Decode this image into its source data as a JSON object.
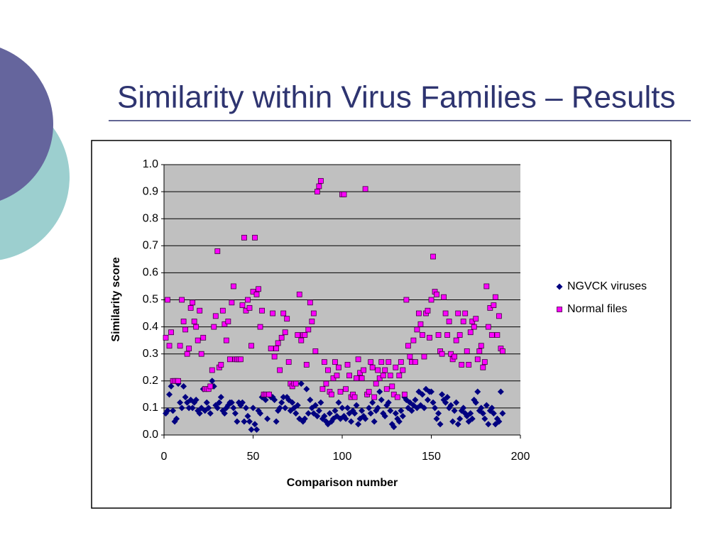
{
  "title": "Similarity within Virus Families – Results",
  "chart_data": {
    "type": "scatter",
    "xlabel": "Comparison number",
    "ylabel": "Similarity score",
    "xlim": [
      0,
      200
    ],
    "xticks": [
      0,
      50,
      100,
      150,
      200
    ],
    "ylim": [
      0,
      1
    ],
    "yticks": [
      {
        "value": 0,
        "label": "0.0"
      },
      0.1,
      0.2,
      0.3,
      0.4,
      0.5,
      0.6,
      0.7,
      0.8,
      0.9,
      {
        "value": 1,
        "label": "1.0"
      }
    ],
    "grid": true,
    "legend": "right",
    "x": [
      1,
      2,
      3,
      4,
      5,
      6,
      7,
      8,
      9,
      10,
      11,
      12,
      13,
      14,
      15,
      16,
      17,
      18,
      19,
      20,
      21,
      22,
      23,
      24,
      25,
      26,
      27,
      28,
      29,
      30,
      31,
      32,
      33,
      34,
      35,
      36,
      37,
      38,
      39,
      40,
      41,
      42,
      43,
      44,
      45,
      46,
      47,
      48,
      49,
      50,
      51,
      52,
      53,
      54,
      55,
      56,
      57,
      58,
      59,
      60,
      61,
      62,
      63,
      64,
      65,
      66,
      67,
      68,
      69,
      70,
      71,
      72,
      73,
      74,
      75,
      76,
      77,
      78,
      79,
      80,
      81,
      82,
      83,
      84,
      85,
      86,
      87,
      88,
      89,
      90,
      91,
      92,
      93,
      94,
      95,
      96,
      97,
      98,
      99,
      100,
      101,
      102,
      103,
      104,
      105,
      106,
      107,
      108,
      109,
      110,
      111,
      112,
      113,
      114,
      115,
      116,
      117,
      118,
      119,
      120,
      121,
      122,
      123,
      124,
      125,
      126,
      127,
      128,
      129,
      130,
      131,
      132,
      133,
      134,
      135,
      136,
      137,
      138,
      139,
      140,
      141,
      142,
      143,
      144,
      145,
      146,
      147,
      148,
      149,
      150,
      151,
      152,
      153,
      154,
      155,
      156,
      157,
      158,
      159,
      160,
      161,
      162,
      163,
      164,
      165,
      166,
      167,
      168,
      169,
      170,
      171,
      172,
      173,
      174,
      175,
      176,
      177,
      178,
      179,
      180,
      181,
      182,
      183,
      184,
      185,
      186,
      187,
      188,
      189,
      190
    ],
    "series": [
      {
        "name": "NGVCK viruses",
        "color": "#000080",
        "marker": "diamond",
        "values": [
          0.08,
          0.09,
          0.15,
          0.18,
          0.09,
          0.05,
          0.06,
          0.19,
          0.12,
          0.1,
          0.18,
          0.14,
          0.12,
          0.1,
          0.13,
          0.1,
          0.12,
          0.13,
          0.09,
          0.08,
          0.1,
          0.17,
          0.09,
          0.12,
          0.1,
          0.08,
          0.2,
          0.18,
          0.11,
          0.1,
          0.12,
          0.14,
          0.09,
          0.08,
          0.1,
          0.11,
          0.12,
          0.12,
          0.1,
          0.08,
          0.05,
          0.12,
          0.11,
          0.12,
          0.05,
          0.1,
          0.07,
          0.05,
          0.02,
          0.1,
          0.04,
          0.02,
          0.09,
          0.08,
          0.14,
          0.15,
          0.13,
          0.06,
          0.15,
          0.14,
          0.14,
          0.13,
          0.05,
          0.09,
          0.1,
          0.12,
          0.14,
          0.1,
          0.14,
          0.13,
          0.09,
          0.12,
          0.1,
          0.08,
          0.11,
          0.06,
          0.19,
          0.05,
          0.06,
          0.17,
          0.08,
          0.13,
          0.1,
          0.08,
          0.11,
          0.07,
          0.09,
          0.12,
          0.06,
          0.07,
          0.05,
          0.04,
          0.08,
          0.05,
          0.06,
          0.09,
          0.07,
          0.12,
          0.06,
          0.1,
          0.07,
          0.06,
          0.1,
          0.08,
          0.05,
          0.09,
          0.08,
          0.11,
          0.04,
          0.06,
          0.09,
          0.07,
          0.06,
          0.15,
          0.1,
          0.08,
          0.12,
          0.05,
          0.09,
          0.1,
          0.16,
          0.13,
          0.08,
          0.07,
          0.11,
          0.12,
          0.09,
          0.04,
          0.03,
          0.08,
          0.06,
          0.05,
          0.09,
          0.07,
          0.14,
          0.13,
          0.1,
          0.12,
          0.09,
          0.11,
          0.13,
          0.1,
          0.16,
          0.11,
          0.15,
          0.1,
          0.17,
          0.13,
          0.16,
          0.16,
          0.12,
          0.1,
          0.06,
          0.08,
          0.04,
          0.15,
          0.13,
          0.12,
          0.14,
          0.1,
          0.11,
          0.05,
          0.09,
          0.12,
          0.04,
          0.06,
          0.09,
          0.1,
          0.08,
          0.07,
          0.05,
          0.08,
          0.06,
          0.13,
          0.12,
          0.16,
          0.09,
          0.1,
          0.08,
          0.06,
          0.11,
          0.04,
          0.09,
          0.1,
          0.08,
          0.04,
          0.06,
          0.05,
          0.16,
          0.08
        ]
      },
      {
        "name": "Normal files",
        "color": "#ff00ff",
        "marker": "square",
        "values": [
          0.36,
          0.5,
          0.33,
          0.38,
          0.2,
          0.2,
          0.2,
          0.2,
          0.33,
          0.5,
          0.42,
          0.39,
          0.3,
          0.32,
          0.47,
          0.49,
          0.42,
          0.4,
          0.35,
          0.46,
          0.3,
          0.36,
          0.17,
          0.17,
          0.17,
          0.18,
          0.24,
          0.4,
          0.44,
          0.68,
          0.25,
          0.26,
          0.46,
          0.41,
          0.35,
          0.42,
          0.28,
          0.49,
          0.55,
          0.28,
          0.28,
          0.28,
          0.28,
          0.48,
          0.73,
          0.46,
          0.5,
          0.47,
          0.33,
          0.53,
          0.73,
          0.52,
          0.54,
          0.4,
          0.46,
          0.15,
          0.15,
          0.15,
          0.15,
          0.32,
          0.45,
          0.29,
          0.32,
          0.34,
          0.24,
          0.36,
          0.45,
          0.38,
          0.43,
          0.27,
          0.19,
          0.18,
          0.19,
          0.19,
          0.37,
          0.52,
          0.35,
          0.37,
          0.37,
          0.26,
          0.39,
          0.49,
          0.42,
          0.45,
          0.31,
          0.9,
          0.92,
          0.94,
          0.17,
          0.27,
          0.19,
          0.24,
          0.16,
          0.15,
          0.21,
          0.27,
          0.22,
          0.25,
          0.16,
          0.89,
          0.89,
          0.17,
          0.26,
          0.22,
          0.14,
          0.15,
          0.14,
          0.21,
          0.28,
          0.23,
          0.21,
          0.24,
          0.91,
          0.15,
          0.16,
          0.27,
          0.25,
          0.14,
          0.19,
          0.24,
          0.21,
          0.27,
          0.22,
          0.24,
          0.17,
          0.27,
          0.22,
          0.18,
          0.15,
          0.25,
          0.14,
          0.22,
          0.27,
          0.24,
          0.15,
          0.5,
          0.33,
          0.29,
          0.27,
          0.35,
          0.27,
          0.39,
          0.45,
          0.41,
          0.37,
          0.29,
          0.45,
          0.46,
          0.36,
          0.5,
          0.66,
          0.53,
          0.52,
          0.37,
          0.31,
          0.3,
          0.51,
          0.45,
          0.37,
          0.42,
          0.3,
          0.28,
          0.29,
          0.35,
          0.45,
          0.37,
          0.26,
          0.42,
          0.45,
          0.31,
          0.26,
          0.38,
          0.42,
          0.4,
          0.43,
          0.28,
          0.31,
          0.33,
          0.25,
          0.27,
          0.55,
          0.4,
          0.47,
          0.37,
          0.48,
          0.51,
          0.37,
          0.44,
          0.32,
          0.31
        ]
      }
    ]
  }
}
